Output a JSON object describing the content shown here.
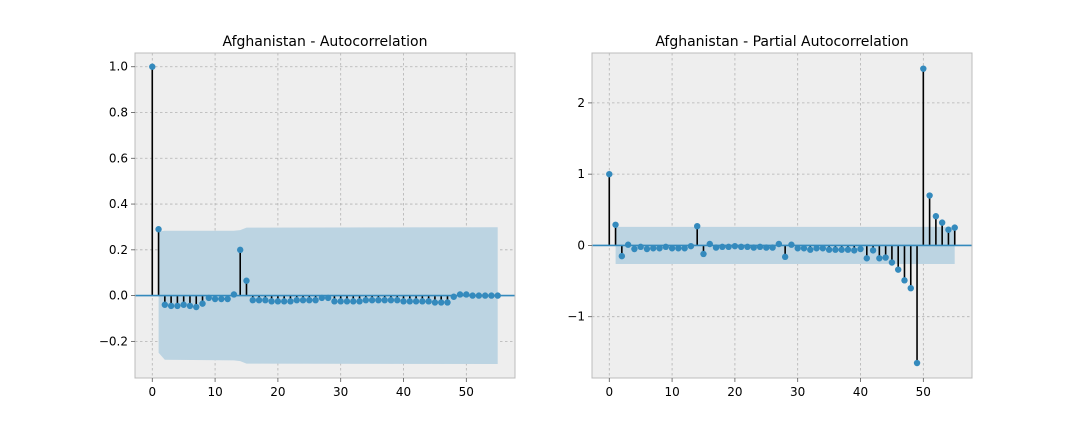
{
  "chart_data": [
    {
      "type": "stem",
      "title": "Afghanistan - Autocorrelation",
      "xlabel": "",
      "ylabel": "",
      "xlim": [
        -2.75,
        57.75
      ],
      "ylim": [
        -0.36,
        1.06
      ],
      "xticks": [
        0,
        10,
        20,
        30,
        40,
        50
      ],
      "yticks": [
        -0.2,
        0.0,
        0.2,
        0.4,
        0.6,
        0.8,
        1.0
      ],
      "ytick_labels": [
        "−0.2",
        "0.0",
        "0.2",
        "0.4",
        "0.6",
        "0.8",
        "1.0"
      ],
      "grid": true,
      "series": [
        {
          "x": [
            0,
            1,
            2,
            3,
            4,
            5,
            6,
            7,
            8,
            9,
            10,
            11,
            12,
            13,
            14,
            15,
            16,
            17,
            18,
            19,
            20,
            21,
            22,
            23,
            24,
            25,
            26,
            27,
            28,
            29,
            30,
            31,
            32,
            33,
            34,
            35,
            36,
            37,
            38,
            39,
            40,
            41,
            42,
            43,
            44,
            45,
            46,
            47,
            48,
            49,
            50,
            51,
            52,
            53,
            54,
            55
          ],
          "values": [
            1.0,
            0.29,
            -0.04,
            -0.045,
            -0.045,
            -0.04,
            -0.045,
            -0.05,
            -0.035,
            -0.01,
            -0.015,
            -0.015,
            -0.015,
            0.005,
            0.2,
            0.065,
            -0.02,
            -0.02,
            -0.02,
            -0.025,
            -0.025,
            -0.025,
            -0.025,
            -0.02,
            -0.02,
            -0.02,
            -0.02,
            -0.01,
            -0.01,
            -0.025,
            -0.025,
            -0.025,
            -0.025,
            -0.025,
            -0.02,
            -0.02,
            -0.02,
            -0.02,
            -0.02,
            -0.02,
            -0.025,
            -0.025,
            -0.025,
            -0.025,
            -0.025,
            -0.03,
            -0.03,
            -0.03,
            -0.005,
            0.005,
            0.005,
            0.0,
            0.0,
            0.0,
            0.0,
            0.0
          ]
        }
      ],
      "confidence_band": {
        "x": [
          1,
          2,
          13,
          14,
          15,
          55
        ],
        "upper": [
          0.28,
          0.283,
          0.283,
          0.286,
          0.297,
          0.299
        ],
        "lower": [
          -0.25,
          -0.28,
          -0.283,
          -0.286,
          -0.297,
          -0.299
        ]
      }
    },
    {
      "type": "stem",
      "title": "Afghanistan - Partial Autocorrelation",
      "xlabel": "",
      "ylabel": "",
      "xlim": [
        -2.75,
        57.75
      ],
      "ylim": [
        -1.86,
        2.7
      ],
      "xticks": [
        0,
        10,
        20,
        30,
        40,
        50
      ],
      "yticks": [
        -1,
        0,
        1,
        2
      ],
      "ytick_labels": [
        "−1",
        "0",
        "1",
        "2"
      ],
      "grid": true,
      "series": [
        {
          "x": [
            0,
            1,
            2,
            3,
            4,
            5,
            6,
            7,
            8,
            9,
            10,
            11,
            12,
            13,
            14,
            15,
            16,
            17,
            18,
            19,
            20,
            21,
            22,
            23,
            24,
            25,
            26,
            27,
            28,
            29,
            30,
            31,
            32,
            33,
            34,
            35,
            36,
            37,
            38,
            39,
            40,
            41,
            42,
            43,
            44,
            45,
            46,
            47,
            48,
            49,
            50,
            51,
            52,
            53,
            54,
            55
          ],
          "values": [
            1.0,
            0.29,
            -0.15,
            0.01,
            -0.05,
            -0.02,
            -0.05,
            -0.04,
            -0.04,
            -0.02,
            -0.04,
            -0.04,
            -0.04,
            -0.01,
            0.27,
            -0.12,
            0.02,
            -0.03,
            -0.02,
            -0.02,
            -0.01,
            -0.02,
            -0.02,
            -0.03,
            -0.02,
            -0.03,
            -0.03,
            0.02,
            -0.16,
            0.01,
            -0.04,
            -0.04,
            -0.06,
            -0.04,
            -0.04,
            -0.06,
            -0.06,
            -0.06,
            -0.06,
            -0.07,
            -0.05,
            -0.18,
            -0.07,
            -0.18,
            -0.17,
            -0.24,
            -0.34,
            -0.49,
            -0.6,
            -1.65,
            2.48,
            0.7,
            0.41,
            0.32,
            0.22,
            0.25
          ]
        }
      ],
      "confidence_band": {
        "x": [
          1,
          55
        ],
        "upper": [
          0.26,
          0.26
        ],
        "lower": [
          -0.26,
          -0.26
        ]
      }
    }
  ]
}
